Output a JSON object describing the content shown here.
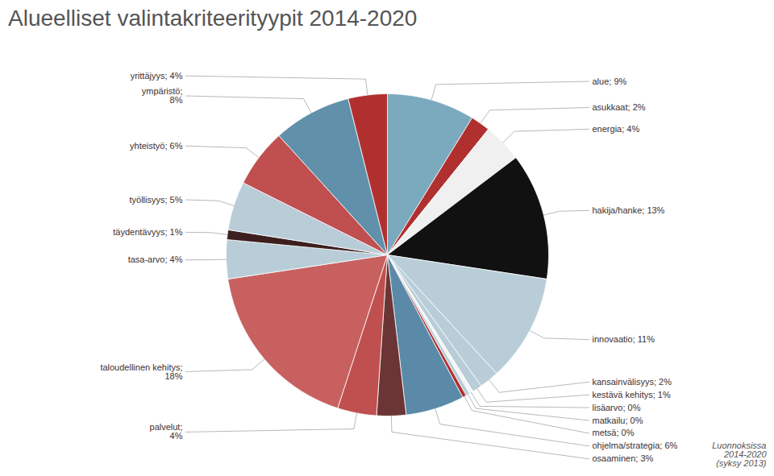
{
  "chart_data": {
    "type": "pie",
    "title": "Alueelliset valintakriteerityypit 2014-2020",
    "categories": [
      "alue; 9%",
      "asukkaat; 2%",
      "energia; 4%",
      "hakija/hanke; 13%",
      "innovaatio; 11%",
      "kansainvälisyys; 2%",
      "kestävä kehitys; 1%",
      "lisäarvo; 0%",
      "matkailu; 0%",
      "metsä; 0%",
      "ohjelma/strategia; 6%",
      "osaaminen; 3%",
      "palvelut;\n4%",
      "taloudellinen kehitys;\n18%",
      "tasa-arvo; 4%",
      "täydentävyys; 1%",
      "työllisyys; 5%",
      "yhteistyö; 6%",
      "ympäristö;\n8%",
      "yrittäjyys; 4%"
    ],
    "values": [
      9,
      2,
      4,
      13,
      11,
      2,
      1,
      0.4,
      0.4,
      0.4,
      6,
      3,
      4,
      18,
      4,
      1,
      5,
      6,
      8,
      4
    ],
    "colors": [
      "#7baabe",
      "#b03030",
      "#f0f0f0",
      "#111111",
      "#b8cdd8",
      "#b8cdd8",
      "#b8cdd8",
      "#f5f5f5",
      "#b8cdd8",
      "#b03030",
      "#5a8aa8",
      "#6b3535",
      "#c05050",
      "#c86060",
      "#b8cdd8",
      "#3d1f1f",
      "#b8cdd8",
      "#c05050",
      "#6090aa",
      "#b03030"
    ],
    "annotation": "Luonnoksissa\n2014-2020\n(syksy 2013)"
  }
}
